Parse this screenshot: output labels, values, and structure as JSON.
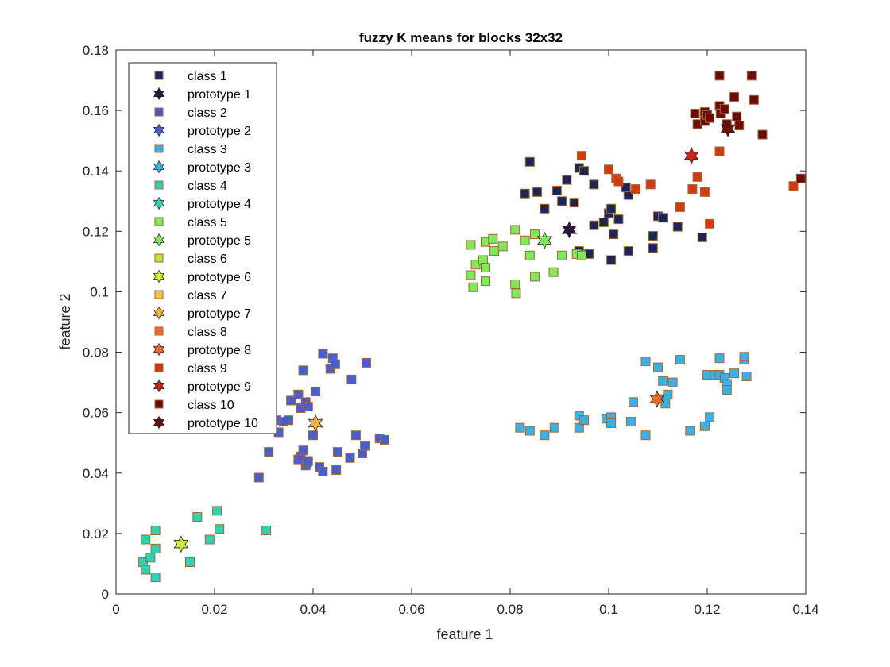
{
  "chart_data": {
    "type": "scatter",
    "title": "fuzzy K means for blocks 32x32",
    "xlabel": "feature 1",
    "ylabel": "feature 2",
    "xlim": [
      0,
      0.14
    ],
    "ylim": [
      0,
      0.18
    ],
    "x_ticks": [
      0,
      0.02,
      0.04,
      0.06,
      0.08,
      0.1,
      0.12,
      0.14
    ],
    "x_tick_labels": [
      "0",
      "0.02",
      "0.04",
      "0.06",
      "0.08",
      "0.1",
      "0.12",
      "0.14"
    ],
    "y_ticks": [
      0,
      0.02,
      0.04,
      0.06,
      0.08,
      0.1,
      0.12,
      0.14,
      0.16,
      0.18
    ],
    "y_tick_labels": [
      "0",
      "0.02",
      "0.04",
      "0.06",
      "0.08",
      "0.1",
      "0.12",
      "0.14",
      "0.16",
      "0.18"
    ],
    "grid": false,
    "legend_position": "top-left",
    "series": [
      {
        "name": "class 1",
        "color": "#1e2454",
        "marker": "square",
        "points": [
          [
            0.084,
            0.143
          ],
          [
            0.083,
            0.1325
          ],
          [
            0.0855,
            0.133
          ],
          [
            0.087,
            0.1275
          ],
          [
            0.0895,
            0.1335
          ],
          [
            0.0915,
            0.137
          ],
          [
            0.093,
            0.1295
          ],
          [
            0.0905,
            0.13
          ],
          [
            0.094,
            0.141
          ],
          [
            0.095,
            0.14
          ],
          [
            0.097,
            0.1355
          ],
          [
            0.1,
            0.126
          ],
          [
            0.1005,
            0.1275
          ],
          [
            0.099,
            0.123
          ],
          [
            0.102,
            0.124
          ],
          [
            0.104,
            0.132
          ],
          [
            0.1035,
            0.1345
          ],
          [
            0.101,
            0.119
          ],
          [
            0.097,
            0.122
          ],
          [
            0.096,
            0.1125
          ],
          [
            0.1005,
            0.1105
          ],
          [
            0.104,
            0.1135
          ],
          [
            0.094,
            0.1135
          ],
          [
            0.109,
            0.1145
          ],
          [
            0.109,
            0.1185
          ],
          [
            0.11,
            0.125
          ],
          [
            0.111,
            0.1245
          ],
          [
            0.114,
            0.1215
          ],
          [
            0.119,
            0.118
          ]
        ]
      },
      {
        "name": "prototype 1",
        "color": "#2a1638",
        "marker": "star",
        "points": [
          [
            0.092,
            0.1205
          ]
        ]
      },
      {
        "name": "class 2",
        "color": "#4b5dc8",
        "marker": "square",
        "points": [
          [
            0.029,
            0.0385
          ],
          [
            0.031,
            0.047
          ],
          [
            0.0325,
            0.0575
          ],
          [
            0.033,
            0.0535
          ],
          [
            0.034,
            0.057
          ],
          [
            0.035,
            0.0575
          ],
          [
            0.0355,
            0.064
          ],
          [
            0.037,
            0.066
          ],
          [
            0.0375,
            0.0615
          ],
          [
            0.038,
            0.074
          ],
          [
            0.0385,
            0.0635
          ],
          [
            0.039,
            0.062
          ],
          [
            0.04,
            0.0525
          ],
          [
            0.0405,
            0.067
          ],
          [
            0.042,
            0.0795
          ],
          [
            0.0435,
            0.0745
          ],
          [
            0.044,
            0.078
          ],
          [
            0.0445,
            0.076
          ],
          [
            0.037,
            0.0445
          ],
          [
            0.0375,
            0.0455
          ],
          [
            0.038,
            0.0475
          ],
          [
            0.0385,
            0.0425
          ],
          [
            0.0388,
            0.0435
          ],
          [
            0.039,
            0.044
          ],
          [
            0.0413,
            0.042
          ],
          [
            0.042,
            0.0405
          ],
          [
            0.0447,
            0.041
          ],
          [
            0.045,
            0.047
          ],
          [
            0.0475,
            0.045
          ],
          [
            0.0478,
            0.071
          ],
          [
            0.0487,
            0.0525
          ],
          [
            0.05,
            0.0465
          ],
          [
            0.0505,
            0.049
          ],
          [
            0.0508,
            0.0765
          ],
          [
            0.0535,
            0.0515
          ],
          [
            0.0545,
            0.051
          ]
        ]
      },
      {
        "name": "prototype 2",
        "color": "#4b5dc8",
        "marker": "star",
        "points": []
      },
      {
        "name": "class 3",
        "color": "#3bb0e3",
        "marker": "square",
        "points": [
          [
            0.082,
            0.055
          ],
          [
            0.084,
            0.054
          ],
          [
            0.087,
            0.0525
          ],
          [
            0.089,
            0.055
          ],
          [
            0.094,
            0.055
          ],
          [
            0.094,
            0.059
          ],
          [
            0.095,
            0.0575
          ],
          [
            0.0995,
            0.058
          ],
          [
            0.1005,
            0.0585
          ],
          [
            0.1005,
            0.0565
          ],
          [
            0.1045,
            0.057
          ],
          [
            0.105,
            0.0635
          ],
          [
            0.1075,
            0.0525
          ],
          [
            0.1075,
            0.077
          ],
          [
            0.11,
            0.075
          ],
          [
            0.1105,
            0.0645
          ],
          [
            0.1115,
            0.063
          ],
          [
            0.111,
            0.0705
          ],
          [
            0.112,
            0.066
          ],
          [
            0.113,
            0.07
          ],
          [
            0.1145,
            0.0775
          ],
          [
            0.1165,
            0.054
          ],
          [
            0.1195,
            0.0555
          ],
          [
            0.12,
            0.0725
          ],
          [
            0.1205,
            0.0585
          ],
          [
            0.1215,
            0.0725
          ],
          [
            0.1225,
            0.078
          ],
          [
            0.1225,
            0.0725
          ],
          [
            0.1235,
            0.0715
          ],
          [
            0.124,
            0.0695
          ],
          [
            0.124,
            0.0675
          ],
          [
            0.1255,
            0.073
          ],
          [
            0.1275,
            0.0775
          ],
          [
            0.1275,
            0.0785
          ],
          [
            0.128,
            0.072
          ]
        ]
      },
      {
        "name": "prototype 3",
        "color": "#3bb0e3",
        "marker": "star",
        "points": []
      },
      {
        "name": "class 4",
        "color": "#2fd3b3",
        "marker": "square",
        "points": [
          [
            0.0055,
            0.0105
          ],
          [
            0.006,
            0.008
          ],
          [
            0.006,
            0.018
          ],
          [
            0.007,
            0.012
          ],
          [
            0.008,
            0.0055
          ],
          [
            0.008,
            0.015
          ],
          [
            0.008,
            0.021
          ],
          [
            0.015,
            0.0105
          ],
          [
            0.0165,
            0.0255
          ],
          [
            0.019,
            0.018
          ],
          [
            0.0205,
            0.0275
          ],
          [
            0.021,
            0.0215
          ],
          [
            0.0305,
            0.021
          ]
        ]
      },
      {
        "name": "prototype 4",
        "color": "#2fd3b3",
        "marker": "star",
        "points": []
      },
      {
        "name": "class 5",
        "color": "#80e85a",
        "marker": "square",
        "points": [
          [
            0.072,
            0.1155
          ],
          [
            0.0725,
            0.1015
          ],
          [
            0.072,
            0.1055
          ],
          [
            0.073,
            0.109
          ],
          [
            0.0745,
            0.1105
          ],
          [
            0.075,
            0.1165
          ],
          [
            0.075,
            0.108
          ],
          [
            0.075,
            0.1035
          ],
          [
            0.0765,
            0.1175
          ],
          [
            0.0768,
            0.1135
          ],
          [
            0.0785,
            0.115
          ],
          [
            0.081,
            0.1205
          ],
          [
            0.081,
            0.1025
          ],
          [
            0.0812,
            0.0995
          ],
          [
            0.083,
            0.117
          ],
          [
            0.084,
            0.112
          ],
          [
            0.085,
            0.119
          ],
          [
            0.085,
            0.105
          ],
          [
            0.0888,
            0.1065
          ],
          [
            0.0905,
            0.112
          ],
          [
            0.0935,
            0.1125
          ],
          [
            0.0945,
            0.112
          ]
        ]
      },
      {
        "name": "prototype 5",
        "color": "#80e85a",
        "marker": "star",
        "points": [
          [
            0.087,
            0.117
          ]
        ]
      },
      {
        "name": "class 6",
        "color": "#c9e04a",
        "marker": "square",
        "points": []
      },
      {
        "name": "prototype 6",
        "color": "#c9ef3a",
        "marker": "star",
        "points": [
          [
            0.0132,
            0.0165
          ]
        ]
      },
      {
        "name": "class 7",
        "color": "#f3c14a",
        "marker": "square",
        "points": []
      },
      {
        "name": "prototype 7",
        "color": "#f6b042",
        "marker": "star",
        "points": [
          [
            0.0405,
            0.0565
          ]
        ]
      },
      {
        "name": "class 8",
        "color": "#ee6a2a",
        "marker": "square",
        "points": []
      },
      {
        "name": "prototype 8",
        "color": "#ee6a2a",
        "marker": "star",
        "points": [
          [
            0.1098,
            0.0645
          ]
        ]
      },
      {
        "name": "class 9",
        "color": "#d23a12",
        "marker": "square",
        "points": [
          [
            0.0945,
            0.145
          ],
          [
            0.1,
            0.1405
          ],
          [
            0.1015,
            0.1375
          ],
          [
            0.102,
            0.1365
          ],
          [
            0.1055,
            0.134
          ],
          [
            0.1085,
            0.1355
          ],
          [
            0.1145,
            0.128
          ],
          [
            0.117,
            0.134
          ],
          [
            0.118,
            0.138
          ],
          [
            0.1195,
            0.133
          ],
          [
            0.1205,
            0.1225
          ],
          [
            0.1225,
            0.1465
          ],
          [
            0.1375,
            0.135
          ]
        ]
      },
      {
        "name": "prototype 9",
        "color": "#c32a14",
        "marker": "star",
        "points": [
          [
            0.1168,
            0.145
          ]
        ]
      },
      {
        "name": "class 10",
        "color": "#6b0c06",
        "marker": "square",
        "points": [
          [
            0.1175,
            0.159
          ],
          [
            0.118,
            0.1555
          ],
          [
            0.1195,
            0.1565
          ],
          [
            0.1195,
            0.1595
          ],
          [
            0.12,
            0.1585
          ],
          [
            0.1205,
            0.1575
          ],
          [
            0.1225,
            0.1715
          ],
          [
            0.1225,
            0.1615
          ],
          [
            0.1227,
            0.159
          ],
          [
            0.1235,
            0.1605
          ],
          [
            0.124,
            0.1555
          ],
          [
            0.1255,
            0.1645
          ],
          [
            0.126,
            0.158
          ],
          [
            0.1265,
            0.155
          ],
          [
            0.129,
            0.1715
          ],
          [
            0.1295,
            0.1635
          ],
          [
            0.1312,
            0.152
          ],
          [
            0.139,
            0.1375
          ]
        ]
      },
      {
        "name": "prototype 10",
        "color": "#6b0c06",
        "marker": "star",
        "points": [
          [
            0.1242,
            0.154
          ]
        ]
      }
    ]
  }
}
